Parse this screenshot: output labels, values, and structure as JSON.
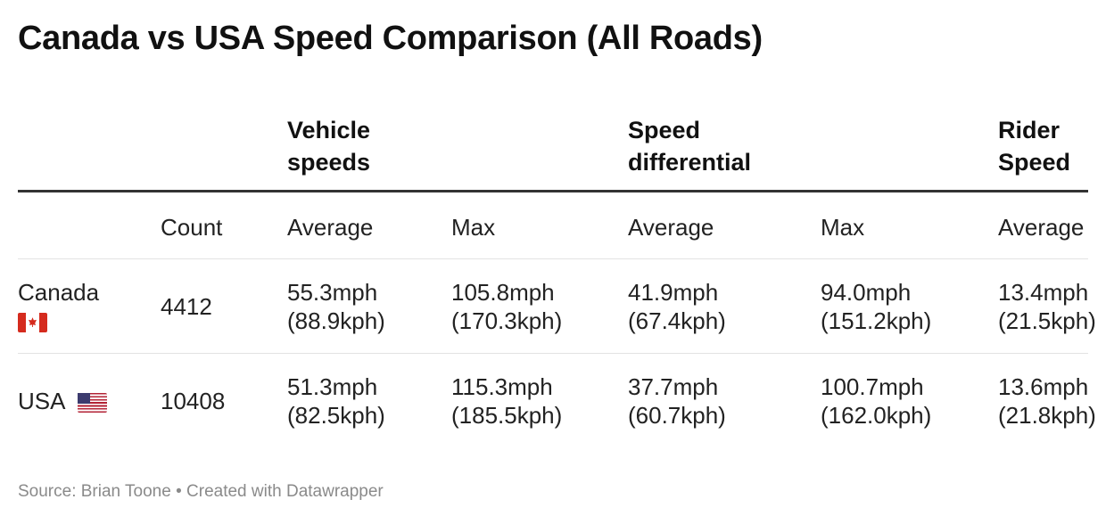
{
  "title": "Canada vs USA Speed Comparison (All Roads)",
  "chart_data": {
    "type": "table",
    "title": "Canada vs USA Speed Comparison (All Roads)",
    "column_groups": [
      {
        "label": "Vehicle speeds",
        "columns": [
          "Average",
          "Max"
        ]
      },
      {
        "label": "Speed differential",
        "columns": [
          "Average",
          "Max"
        ]
      },
      {
        "label": "Rider Speed",
        "columns": [
          "Average"
        ]
      }
    ],
    "column_headers": [
      "",
      "Count",
      "Average",
      "Max",
      "Average",
      "Max",
      "Average"
    ],
    "rows": [
      {
        "country": "Canada",
        "flag": "canada-flag-icon",
        "count": "4412",
        "vehicle_avg": [
          "55.3mph",
          "(88.9kph)"
        ],
        "vehicle_max": [
          "105.8mph",
          "(170.3kph)"
        ],
        "diff_avg": [
          "41.9mph",
          "(67.4kph)"
        ],
        "diff_max": [
          "94.0mph",
          "(151.2kph)"
        ],
        "rider_avg": [
          "13.4mph",
          "(21.5kph)"
        ]
      },
      {
        "country": "USA",
        "flag": "usa-flag-icon",
        "count": "10408",
        "vehicle_avg": [
          "51.3mph",
          "(82.5kph)"
        ],
        "vehicle_max": [
          "115.3mph",
          "(185.5kph)"
        ],
        "diff_avg": [
          "37.7mph",
          "(60.7kph)"
        ],
        "diff_max": [
          "100.7mph",
          "(162.0kph)"
        ],
        "rider_avg": [
          "13.6mph",
          "(21.8kph)"
        ]
      }
    ]
  },
  "group_headers": {
    "vehicle": "Vehicle\nspeeds",
    "differential": "Speed\ndifferential",
    "rider": "Rider\nSpeed"
  },
  "footer": "Source: Brian Toone • Created with Datawrapper"
}
